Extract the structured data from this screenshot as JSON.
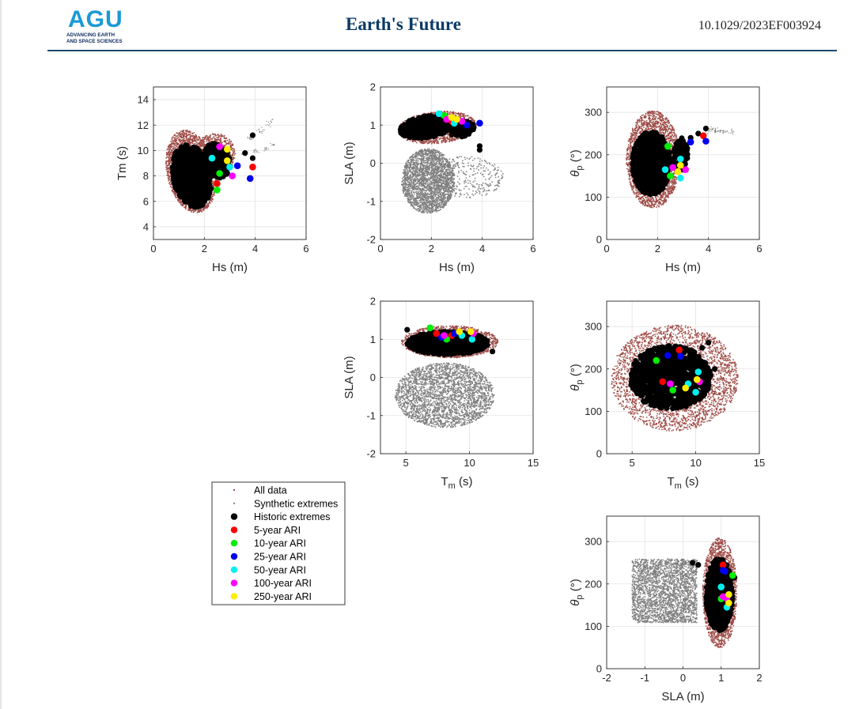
{
  "header": {
    "logo_text": "AGU",
    "logo_line1": "ADVANCING EARTH",
    "logo_line2": "AND SPACE SCIENCES",
    "journal": "Earth's Future",
    "doi": "10.1029/2023EF003924"
  },
  "colors": {
    "all_data": "#9e4a45",
    "synthetic": "#7f7f7f",
    "historic": "#000000",
    "ari_5": "#ff0000",
    "ari_10": "#00ee00",
    "ari_25": "#0000ee",
    "ari_50": "#00f0f0",
    "ari_100": "#ff00ff",
    "ari_250": "#ffee00",
    "header_text": "#0b3a66"
  },
  "legend": {
    "placement": "left-middle",
    "entries": [
      "All data",
      "Synthetic extremes",
      "Historic extremes",
      "5-year ARI",
      "10-year ARI",
      "25-year ARI",
      "50-year ARI",
      "100-year ARI",
      "250-year ARI"
    ]
  },
  "chart_data": [
    {
      "type": "scatter",
      "id": "hs_tm",
      "xlabel": "Hs (m)",
      "ylabel": "Tm (s)",
      "xlim": [
        0,
        6
      ],
      "ylim": [
        3,
        15
      ],
      "xticks": [
        0,
        2,
        4,
        6
      ],
      "yticks": [
        4,
        6,
        8,
        10,
        12,
        14
      ],
      "grid": true,
      "series": [
        {
          "name": "5-year ARI",
          "points": [
            [
              2.5,
              7.4
            ],
            [
              3.9,
              8.7
            ]
          ]
        },
        {
          "name": "10-year ARI",
          "points": [
            [
              2.6,
              8.2
            ],
            [
              2.5,
              6.9
            ]
          ]
        },
        {
          "name": "25-year ARI",
          "points": [
            [
              3.3,
              8.8
            ],
            [
              3.8,
              7.8
            ]
          ]
        },
        {
          "name": "50-year ARI",
          "points": [
            [
              2.3,
              9.4
            ],
            [
              3.0,
              8.7
            ]
          ]
        },
        {
          "name": "100-year ARI",
          "points": [
            [
              2.6,
              10.3
            ],
            [
              3.1,
              8.0
            ]
          ]
        },
        {
          "name": "250-year ARI",
          "points": [
            [
              2.9,
              10.1
            ],
            [
              2.9,
              9.2
            ]
          ]
        }
      ]
    },
    {
      "type": "scatter",
      "id": "hs_sla",
      "xlabel": "Hs (m)",
      "ylabel": "SLA (m)",
      "xlim": [
        0,
        6
      ],
      "ylim": [
        -2,
        2
      ],
      "xticks": [
        0,
        2,
        4,
        6
      ],
      "yticks": [
        -2,
        -1,
        0,
        1,
        2
      ],
      "grid": true,
      "series": [
        {
          "name": "5-year ARI",
          "points": [
            [
              2.8,
              1.1
            ]
          ]
        },
        {
          "name": "10-year ARI",
          "points": [
            [
              2.5,
              1.25
            ]
          ]
        },
        {
          "name": "25-year ARI",
          "points": [
            [
              3.4,
              1.0
            ],
            [
              3.9,
              1.05
            ]
          ]
        },
        {
          "name": "50-year ARI",
          "points": [
            [
              2.3,
              1.3
            ],
            [
              2.9,
              1.05
            ]
          ]
        },
        {
          "name": "100-year ARI",
          "points": [
            [
              2.6,
              1.15
            ],
            [
              3.2,
              1.1
            ]
          ]
        },
        {
          "name": "250-year ARI",
          "points": [
            [
              2.8,
              1.2
            ],
            [
              3.0,
              1.15
            ]
          ]
        }
      ]
    },
    {
      "type": "scatter",
      "id": "hs_theta",
      "xlabel": "Hs (m)",
      "ylabel": "θp (°)",
      "xlim": [
        0,
        6
      ],
      "ylim": [
        0,
        360
      ],
      "xticks": [
        0,
        2,
        4,
        6
      ],
      "yticks": [
        0,
        100,
        200,
        300
      ],
      "grid": true,
      "series": [
        {
          "name": "5-year ARI",
          "points": [
            [
              3.8,
              245
            ]
          ]
        },
        {
          "name": "10-year ARI",
          "points": [
            [
              2.4,
              220
            ],
            [
              2.5,
              150
            ]
          ]
        },
        {
          "name": "25-year ARI",
          "points": [
            [
              3.3,
              230
            ],
            [
              3.9,
              232
            ]
          ]
        },
        {
          "name": "50-year ARI",
          "points": [
            [
              2.3,
              165
            ],
            [
              2.9,
              190
            ],
            [
              2.9,
              145
            ]
          ]
        },
        {
          "name": "100-year ARI",
          "points": [
            [
              2.6,
              170
            ],
            [
              3.1,
              165
            ]
          ]
        },
        {
          "name": "250-year ARI",
          "points": [
            [
              2.8,
              160
            ],
            [
              2.9,
              175
            ]
          ]
        }
      ]
    },
    {
      "type": "scatter",
      "id": "tm_sla",
      "xlabel": "Tm (s)",
      "ylabel": "SLA (m)",
      "xlim": [
        3,
        15
      ],
      "ylim": [
        -2,
        2
      ],
      "xticks": [
        5,
        10,
        15
      ],
      "yticks": [
        -2,
        -1,
        0,
        1,
        2
      ],
      "grid": true,
      "series": [
        {
          "name": "5-year ARI",
          "points": [
            [
              7.4,
              1.15
            ],
            [
              8.6,
              1.1
            ]
          ]
        },
        {
          "name": "10-year ARI",
          "points": [
            [
              6.9,
              1.3
            ],
            [
              8.2,
              1.0
            ]
          ]
        },
        {
          "name": "25-year ARI",
          "points": [
            [
              7.8,
              1.05
            ],
            [
              8.8,
              1.15
            ]
          ]
        },
        {
          "name": "50-year ARI",
          "points": [
            [
              9.4,
              1.1
            ],
            [
              10.2,
              1.0
            ]
          ]
        },
        {
          "name": "100-year ARI",
          "points": [
            [
              8.0,
              1.1
            ],
            [
              10.3,
              1.15
            ]
          ]
        },
        {
          "name": "250-year ARI",
          "points": [
            [
              9.2,
              1.2
            ],
            [
              10.1,
              1.2
            ]
          ]
        }
      ]
    },
    {
      "type": "scatter",
      "id": "tm_theta",
      "xlabel": "Tm (s)",
      "ylabel": "θp (°)",
      "xlim": [
        3,
        15
      ],
      "ylim": [
        0,
        360
      ],
      "xticks": [
        5,
        10,
        15
      ],
      "yticks": [
        0,
        100,
        200,
        300
      ],
      "grid": true,
      "series": [
        {
          "name": "5-year ARI",
          "points": [
            [
              7.4,
              170
            ],
            [
              8.7,
              245
            ]
          ]
        },
        {
          "name": "10-year ARI",
          "points": [
            [
              6.9,
              220
            ],
            [
              8.2,
              150
            ]
          ]
        },
        {
          "name": "25-year ARI",
          "points": [
            [
              7.8,
              232
            ],
            [
              8.8,
              230
            ]
          ]
        },
        {
          "name": "50-year ARI",
          "points": [
            [
              9.4,
              165
            ],
            [
              10.0,
              145
            ],
            [
              10.2,
              193
            ]
          ]
        },
        {
          "name": "100-year ARI",
          "points": [
            [
              8.0,
              165
            ],
            [
              10.3,
              170
            ]
          ]
        },
        {
          "name": "250-year ARI",
          "points": [
            [
              9.2,
              155
            ],
            [
              10.1,
              175
            ]
          ]
        }
      ]
    },
    {
      "type": "scatter",
      "id": "sla_theta",
      "xlabel": "SLA (m)",
      "ylabel": "θp (°)",
      "xlim": [
        -2,
        2
      ],
      "ylim": [
        0,
        360
      ],
      "xticks": [
        -2,
        -1,
        0,
        1,
        2
      ],
      "yticks": [
        0,
        100,
        200,
        300
      ],
      "grid": true,
      "series": [
        {
          "name": "5-year ARI",
          "points": [
            [
              1.05,
              245
            ]
          ]
        },
        {
          "name": "10-year ARI",
          "points": [
            [
              1.3,
              220
            ],
            [
              1.0,
              165
            ]
          ]
        },
        {
          "name": "25-year ARI",
          "points": [
            [
              1.1,
              230
            ],
            [
              1.05,
              232
            ]
          ]
        },
        {
          "name": "50-year ARI",
          "points": [
            [
              1.0,
              193
            ],
            [
              1.15,
              145
            ]
          ]
        },
        {
          "name": "100-year ARI",
          "points": [
            [
              1.05,
              170
            ],
            [
              1.15,
              165
            ]
          ]
        },
        {
          "name": "250-year ARI",
          "points": [
            [
              1.2,
              155
            ],
            [
              1.2,
              175
            ]
          ]
        }
      ]
    }
  ]
}
